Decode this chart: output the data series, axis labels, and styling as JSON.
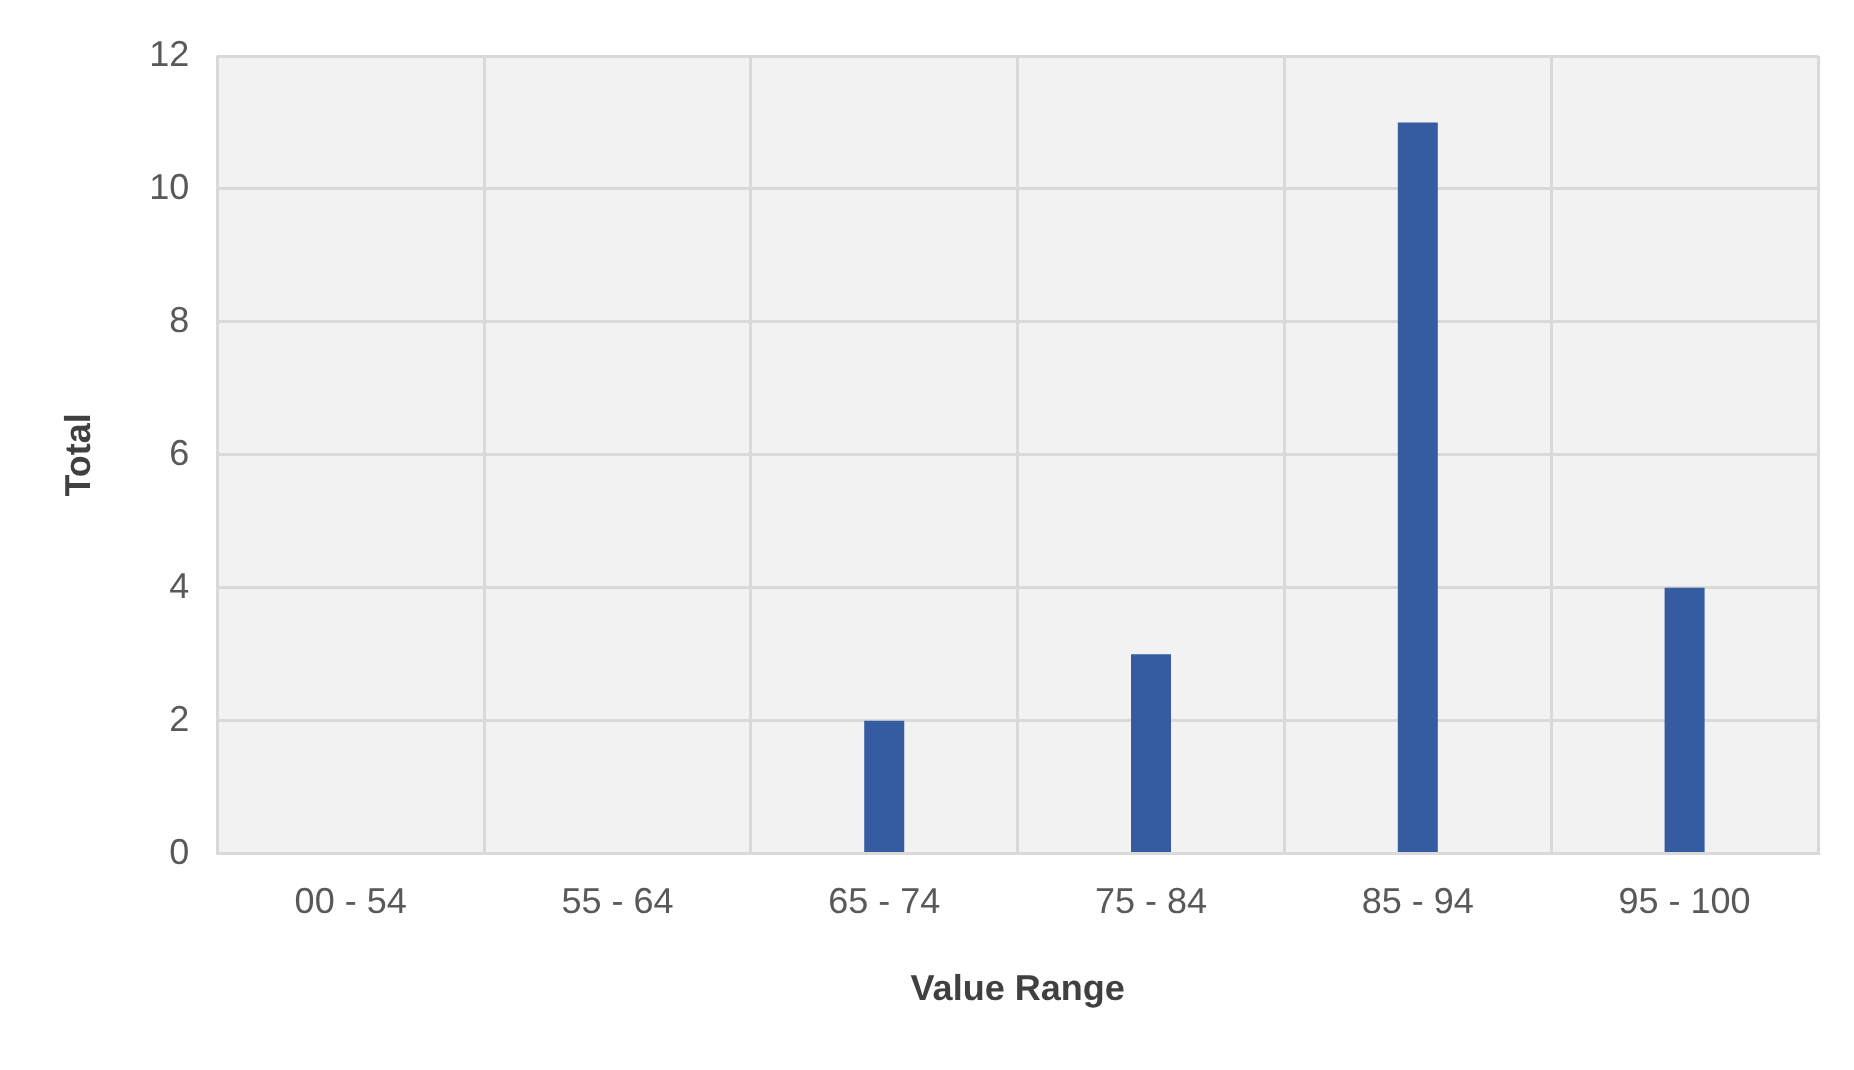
{
  "chart_data": {
    "type": "bar",
    "xlabel": "Value Range",
    "ylabel": "Total",
    "categories": [
      "00 - 54",
      "55 - 64",
      "65 - 74",
      "75 - 84",
      "85 - 94",
      "95 - 100"
    ],
    "values": [
      0,
      0,
      2,
      3,
      11,
      4
    ],
    "color": "#355ca1",
    "ylim": [
      0,
      12
    ],
    "yticks": [
      0,
      2,
      4,
      6,
      8,
      10,
      12
    ],
    "grid": true
  }
}
